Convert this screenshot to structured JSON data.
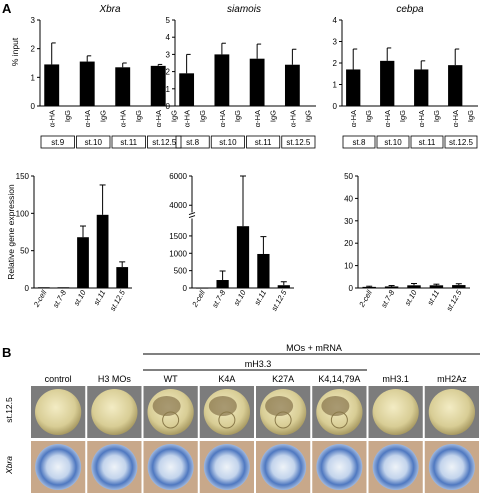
{
  "panel_a_label": "A",
  "panel_b_label": "B",
  "chart_data": [
    {
      "type": "bar",
      "title": "Xbra",
      "ylabel": "% input",
      "ylim": [
        0,
        3
      ],
      "yticks": [
        "0",
        "1",
        "2",
        "3"
      ],
      "ab_labels": [
        "α-HA",
        "IgG"
      ],
      "groups": [
        "st.9",
        "st.10",
        "st.11",
        "st.12.5"
      ],
      "series": [
        {
          "name": "α-HA",
          "values": [
            1.45,
            1.55,
            1.35,
            1.4
          ],
          "errors": [
            0.75,
            0.2,
            0.15,
            0.05
          ]
        },
        {
          "name": "IgG",
          "values": [
            0,
            0,
            0,
            0
          ],
          "errors": [
            0,
            0,
            0,
            0
          ]
        }
      ]
    },
    {
      "type": "bar",
      "title": "siamois",
      "ylim": [
        0,
        5
      ],
      "yticks": [
        "0",
        "1",
        "2",
        "3",
        "4",
        "5"
      ],
      "ab_labels": [
        "α-HA",
        "IgG"
      ],
      "groups": [
        "st.8",
        "st.10",
        "st.11",
        "st.12.5"
      ],
      "series": [
        {
          "name": "α-HA",
          "values": [
            1.9,
            3.0,
            2.75,
            2.4
          ],
          "errors": [
            1.1,
            0.65,
            0.85,
            0.9
          ]
        },
        {
          "name": "IgG",
          "values": [
            0,
            0,
            0,
            0
          ],
          "errors": [
            0,
            0,
            0,
            0
          ]
        }
      ]
    },
    {
      "type": "bar",
      "title": "cebpa",
      "ylim": [
        0,
        4
      ],
      "yticks": [
        "0",
        "1",
        "2",
        "3",
        "4"
      ],
      "ab_labels": [
        "α-HA",
        "IgG"
      ],
      "groups": [
        "st.8",
        "st.10",
        "st.11",
        "st.12.5"
      ],
      "series": [
        {
          "name": "α-HA",
          "values": [
            1.7,
            2.1,
            1.7,
            1.9
          ],
          "errors": [
            0.95,
            0.6,
            0.4,
            0.75
          ]
        },
        {
          "name": "IgG",
          "values": [
            0,
            0,
            0,
            0
          ],
          "errors": [
            0,
            0,
            0,
            0
          ]
        }
      ]
    },
    {
      "type": "bar",
      "ylabel": "Relative gene expression",
      "ylim": [
        0,
        150
      ],
      "yticks": [
        "0",
        "50",
        "100",
        "150"
      ],
      "categories": [
        "2-cell",
        "st.7-8",
        "st.10",
        "st.11",
        "st.12.5"
      ],
      "values": [
        1,
        1,
        68,
        98,
        28
      ],
      "errors": [
        0,
        0,
        15,
        40,
        7
      ]
    },
    {
      "type": "bar",
      "ylim": [
        0,
        6000
      ],
      "axis_break": [
        2000,
        3500
      ],
      "yticks": [
        "0",
        "500",
        "1000",
        "1500",
        "4000",
        "6000"
      ],
      "categories": [
        "2-cell",
        "st.7-8",
        "st.10",
        "st.11",
        "st.12.5"
      ],
      "values": [
        0,
        230,
        1780,
        980,
        80
      ],
      "errors": [
        0,
        260,
        4500,
        500,
        100
      ]
    },
    {
      "type": "bar",
      "ylim": [
        0,
        50
      ],
      "yticks": [
        "0",
        "10",
        "20",
        "30",
        "40",
        "50"
      ],
      "categories": [
        "2-cell",
        "st.7-8",
        "st.10",
        "st.11",
        "st.12.5"
      ],
      "values": [
        0.5,
        0.7,
        1.2,
        1.2,
        1.3
      ],
      "errors": [
        0.3,
        0.4,
        0.8,
        0.5,
        0.6
      ]
    }
  ],
  "panel_b": {
    "header": "MOs + mRNA",
    "subheader": "mH3.3",
    "columns": [
      "control",
      "H3 MOs",
      "WT",
      "K4A",
      "K27A",
      "K4,14,79A",
      "mH3.1",
      "mH2Az"
    ],
    "rows": [
      "st.12.5",
      "Xbra"
    ]
  }
}
